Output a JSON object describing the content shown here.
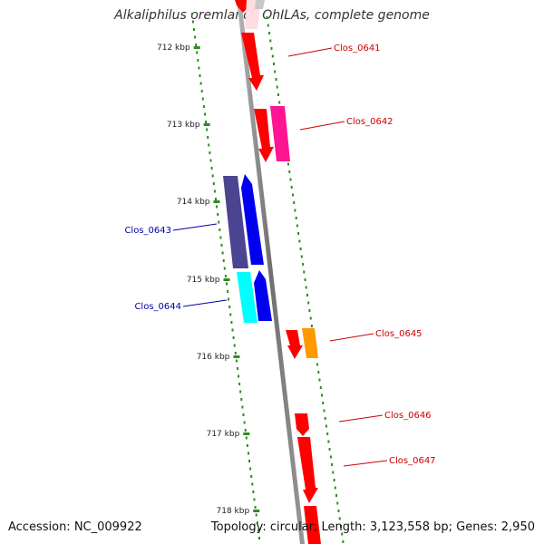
{
  "title": "Alkaliphilus oremlandii OhILAs, complete genome",
  "footer": {
    "accession": "Accession: NC_009922",
    "details": "Topology: circular; Length: 3,123,558 bp; Genes: 2,950"
  },
  "colors": {
    "background": "#ffffff",
    "backbone": "#8a8a8a",
    "ruler_dots": "#2e8b22",
    "forward_label": "#cc0000",
    "reverse_label": "#0000aa",
    "red_gene": "#ff0000",
    "pink_gene": "#ff1493",
    "purple_gene": "#4b4490",
    "blue_gene": "#0000ee",
    "cyan_gene": "#00ffff",
    "orange_gene": "#ff9900"
  },
  "ruler": {
    "ticks": [
      "712 kbp",
      "713 kbp",
      "714 kbp",
      "715 kbp",
      "716 kbp",
      "717 kbp",
      "718 kbp"
    ]
  },
  "genes": [
    {
      "label": "Clos_0641",
      "strand": "forward"
    },
    {
      "label": "Clos_0642",
      "strand": "forward"
    },
    {
      "label": "Clos_0643",
      "strand": "reverse"
    },
    {
      "label": "Clos_0644",
      "strand": "reverse"
    },
    {
      "label": "Clos_0645",
      "strand": "forward"
    },
    {
      "label": "Clos_0646",
      "strand": "forward"
    },
    {
      "label": "Clos_0647",
      "strand": "forward"
    }
  ]
}
